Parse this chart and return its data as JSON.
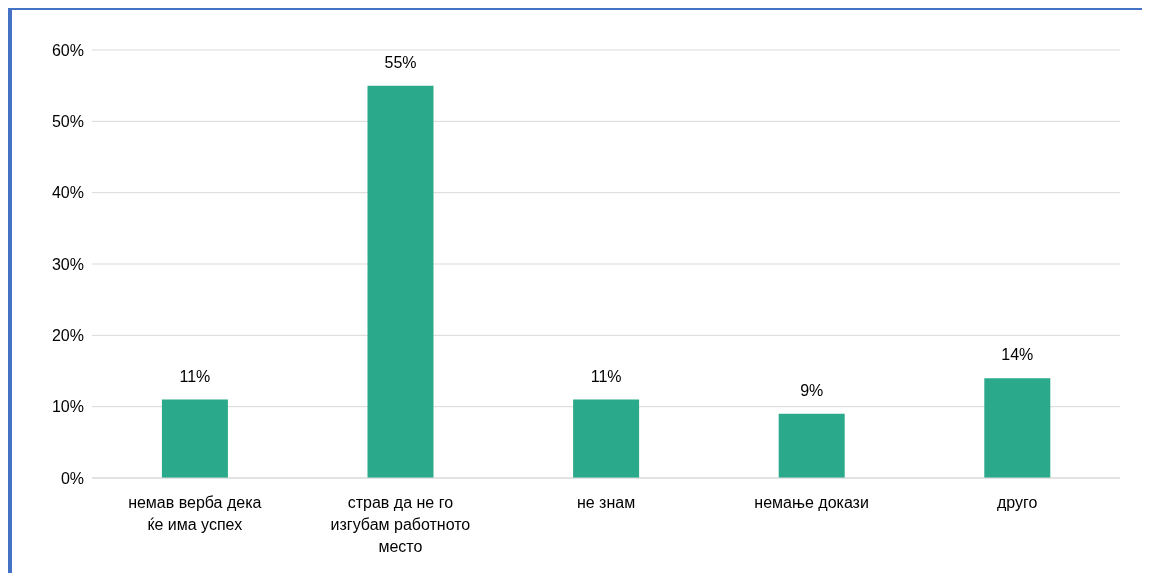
{
  "chart_data": {
    "type": "bar",
    "categories": [
      "немав верба дека ќе има успех",
      "страв да не го изгубам работното место",
      "не знам",
      "немање докази",
      "друго"
    ],
    "values": [
      11,
      55,
      11,
      9,
      14
    ],
    "value_labels": [
      "11%",
      "55%",
      "11%",
      "9%",
      "14%"
    ],
    "color": "#2aaa8a",
    "ylim": [
      0,
      60
    ],
    "yticks": [
      {
        "value": 0,
        "label": "0%"
      },
      {
        "value": 10,
        "label": "10%"
      },
      {
        "value": 20,
        "label": "20%"
      },
      {
        "value": 30,
        "label": "30%"
      },
      {
        "value": 40,
        "label": "40%"
      },
      {
        "value": 50,
        "label": "50%"
      },
      {
        "value": 60,
        "label": "60%"
      }
    ],
    "grid": "y",
    "legend": false
  }
}
